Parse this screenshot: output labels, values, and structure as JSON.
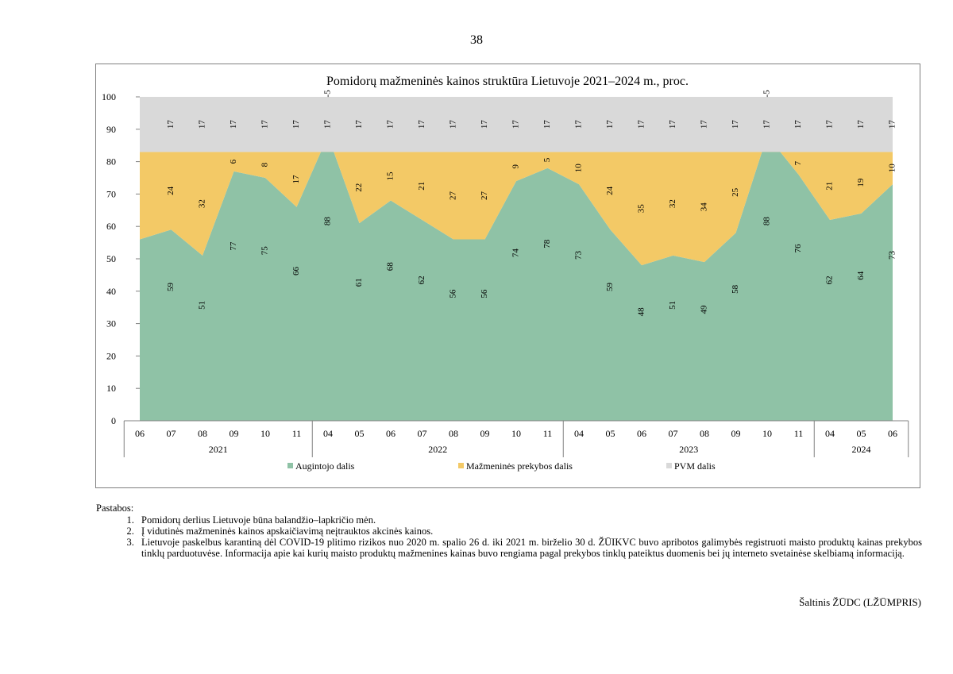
{
  "page": {
    "number": "38"
  },
  "chart_data": {
    "type": "area",
    "stacked": true,
    "title": "Pomidorų mažmeninės kainos struktūra Lietuvoje 2021–2024 m., proc.",
    "xlabel": "",
    "ylabel": "",
    "ylim": [
      0,
      100
    ],
    "yticks": [
      "0",
      "10",
      "20",
      "30",
      "40",
      "50",
      "60",
      "70",
      "80",
      "90",
      "100"
    ],
    "grid": false,
    "legend_position": "bottom",
    "months": [
      "06",
      "07",
      "08",
      "09",
      "10",
      "11",
      "04",
      "05",
      "06",
      "07",
      "08",
      "09",
      "10",
      "11",
      "04",
      "05",
      "06",
      "07",
      "08",
      "09",
      "10",
      "11",
      "04",
      "05",
      "06"
    ],
    "year_groups": [
      {
        "label": "2021",
        "start": 0,
        "count": 6
      },
      {
        "label": "2022",
        "start": 6,
        "count": 8
      },
      {
        "label": "2023",
        "start": 14,
        "count": 8
      },
      {
        "label": "2024",
        "start": 22,
        "count": 3
      }
    ],
    "series": [
      {
        "name": "Augintojo dalis",
        "color": "#8fc2a6",
        "values": [
          56,
          59,
          51,
          77,
          75,
          66,
          88,
          61,
          68,
          62,
          56,
          56,
          74,
          78,
          73,
          59,
          48,
          51,
          49,
          58,
          88,
          76,
          62,
          64,
          73
        ],
        "labels": [
          "",
          "59",
          "51",
          "77",
          "75",
          "66",
          "88",
          "61",
          "68",
          "62",
          "56",
          "56",
          "74",
          "78",
          "73",
          "59",
          "48",
          "51",
          "49",
          "58",
          "88",
          "76",
          "62",
          "64",
          "73"
        ]
      },
      {
        "name": "Mažmeninės prekybos dalis",
        "color": "#f3c966",
        "values": [
          27,
          24,
          32,
          6,
          8,
          17,
          -5,
          22,
          15,
          21,
          27,
          27,
          9,
          5,
          10,
          24,
          35,
          32,
          34,
          25,
          -5,
          7,
          21,
          19,
          10
        ],
        "labels": [
          "",
          "24",
          "32",
          "6",
          "8",
          "17",
          "-5",
          "22",
          "15",
          "21",
          "27",
          "27",
          "9",
          "5",
          "10",
          "24",
          "35",
          "32",
          "34",
          "25",
          "-5",
          "7",
          "21",
          "19",
          "10"
        ]
      },
      {
        "name": "PVM dalis",
        "color": "#d9d9d9",
        "values": [
          17,
          17,
          17,
          17,
          17,
          17,
          17,
          17,
          17,
          17,
          17,
          17,
          17,
          17,
          17,
          17,
          17,
          17,
          17,
          17,
          17,
          17,
          17,
          17,
          17
        ],
        "labels": [
          "",
          "17",
          "17",
          "17",
          "17",
          "17",
          "17",
          "17",
          "17",
          "17",
          "17",
          "17",
          "17",
          "17",
          "17",
          "17",
          "17",
          "17",
          "17",
          "17",
          "17",
          "17",
          "17",
          "17",
          "17"
        ]
      }
    ]
  },
  "notes": {
    "heading": "Pastabos:",
    "items": [
      "Pomidorų derlius Lietuvoje būna balandžio–lapkričio mėn.",
      "Į vidutinės mažmeninės kainos apskaičiavimą neįtrauktos akcinės kainos.",
      "Lietuvoje paskelbus karantiną dėl COVID-19 plitimo rizikos nuo 2020 m. spalio 26 d. iki 2021 m. birželio 30 d. ŽŪIKVC buvo apribotos galimybės registruoti maisto produktų kainas prekybos tinklų parduotuvėse. Informacija apie kai kurių maisto produktų mažmenines kainas buvo rengiama pagal prekybos tinklų pateiktus duomenis bei jų interneto svetainėse skelbiamą informaciją."
    ]
  },
  "source": "Šaltinis ŽŪDC (LŽŪMPRIS)"
}
